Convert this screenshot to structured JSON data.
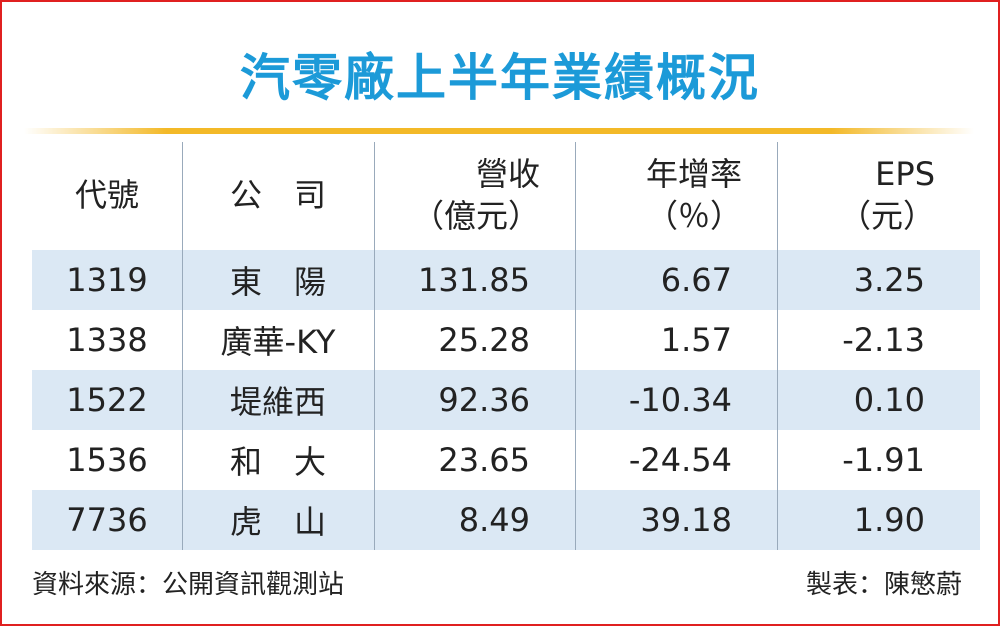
{
  "title": "汽零廠上半年業績概況",
  "table": {
    "headers": [
      [
        "代號"
      ],
      [
        "公　司"
      ],
      [
        "營收",
        "（億元）"
      ],
      [
        "年增率",
        "（％）"
      ],
      [
        "EPS",
        "（元）"
      ]
    ],
    "rows": [
      [
        "1319",
        "東　陽",
        "131.85",
        "6.67",
        "3.25"
      ],
      [
        "1338",
        "廣華-KY",
        "25.28",
        "1.57",
        "-2.13"
      ],
      [
        "1522",
        "堤維西",
        "92.36",
        "-10.34",
        "0.10"
      ],
      [
        "1536",
        "和　大",
        "23.65",
        "-24.54",
        "-1.91"
      ],
      [
        "7736",
        "虎　山",
        "8.49",
        "39.18",
        "1.90"
      ]
    ]
  },
  "footer": {
    "source": "資料來源：公開資訊觀測站",
    "maker": "製表：陳慜蔚"
  }
}
